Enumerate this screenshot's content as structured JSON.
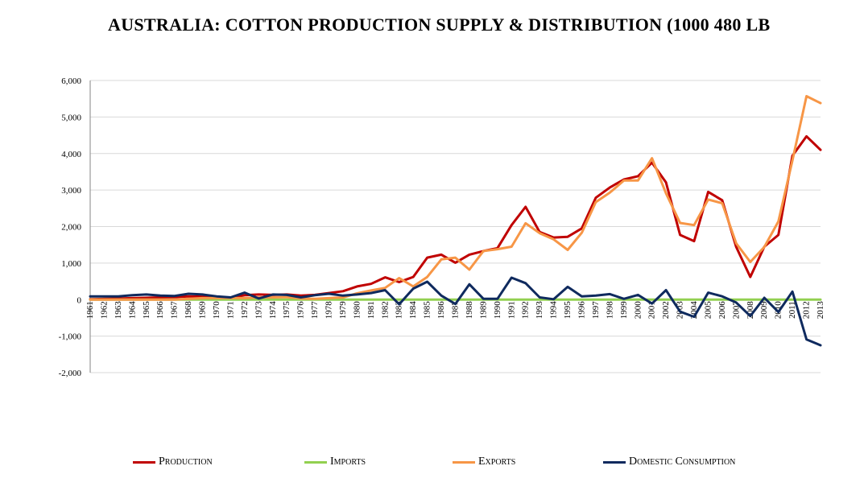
{
  "chart_data": {
    "type": "line",
    "title": "AUSTRALIA:  COTTON PRODUCTION SUPPLY & DISTRIBUTION  (1000 480 LB",
    "xlabel": "",
    "ylabel": "",
    "ylim": [
      -2000,
      6000
    ],
    "yticks": [
      -2000,
      -1000,
      0,
      1000,
      2000,
      3000,
      4000,
      5000,
      6000
    ],
    "ytick_labels": [
      "-2,000",
      "-1,000",
      "0",
      "1,000",
      "2,000",
      "3,000",
      "4,000",
      "5,000",
      "6,000"
    ],
    "grid": true,
    "legend_position": "bottom",
    "x": [
      "1961",
      "1962",
      "1963",
      "1964",
      "1965",
      "1966",
      "1967",
      "1968",
      "1969",
      "1970",
      "1971",
      "1972",
      "1973",
      "1974",
      "1975",
      "1976",
      "1977",
      "1978",
      "1979",
      "1980",
      "1981",
      "1982",
      "1983",
      "1984",
      "1985",
      "1986",
      "1987",
      "1988",
      "1989",
      "1990",
      "1991",
      "1992",
      "1993",
      "1994",
      "1995",
      "1996",
      "1997",
      "1998",
      "1999",
      "2000",
      "2001",
      "2002",
      "2003",
      "2004",
      "2005",
      "2006",
      "2007",
      "2008",
      "2009",
      "2010",
      "2011",
      "2012",
      "2013"
    ],
    "series": [
      {
        "name": "Production",
        "color": "#c00000",
        "values": [
          10,
          20,
          30,
          40,
          50,
          60,
          70,
          90,
          80,
          60,
          50,
          120,
          140,
          130,
          140,
          110,
          130,
          180,
          230,
          360,
          430,
          610,
          480,
          620,
          1150,
          1230,
          1010,
          1230,
          1330,
          1410,
          2040,
          2540,
          1850,
          1700,
          1720,
          1950,
          2790,
          3070,
          3290,
          3380,
          3750,
          3210,
          1770,
          1600,
          2950,
          2720,
          1440,
          620,
          1450,
          1770,
          3940,
          4470,
          4100
        ]
      },
      {
        "name": "Imports",
        "color": "#92d050",
        "values": [
          0,
          0,
          0,
          0,
          0,
          0,
          0,
          0,
          0,
          0,
          0,
          0,
          0,
          0,
          0,
          0,
          0,
          0,
          0,
          0,
          0,
          0,
          0,
          0,
          0,
          0,
          0,
          0,
          0,
          0,
          0,
          0,
          0,
          0,
          0,
          0,
          0,
          0,
          0,
          0,
          0,
          0,
          0,
          0,
          0,
          0,
          0,
          0,
          0,
          0,
          0,
          0,
          0
        ]
      },
      {
        "name": "Exports",
        "color": "#f79646",
        "values": [
          0,
          0,
          0,
          0,
          0,
          0,
          0,
          20,
          40,
          40,
          40,
          40,
          60,
          60,
          70,
          30,
          20,
          40,
          60,
          170,
          250,
          320,
          590,
          360,
          620,
          1100,
          1150,
          820,
          1330,
          1380,
          1450,
          2090,
          1820,
          1650,
          1360,
          1830,
          2670,
          2930,
          3260,
          3260,
          3870,
          2910,
          2100,
          2040,
          2740,
          2640,
          1540,
          1030,
          1440,
          2140,
          3810,
          5570,
          5380
        ]
      },
      {
        "name": "Domestic Consumption",
        "color": "#0f2a5e",
        "values": [
          90,
          90,
          90,
          120,
          140,
          110,
          100,
          160,
          140,
          90,
          60,
          190,
          30,
          140,
          130,
          60,
          120,
          160,
          110,
          140,
          180,
          260,
          -130,
          300,
          490,
          110,
          -120,
          420,
          20,
          20,
          600,
          450,
          60,
          10,
          350,
          90,
          110,
          150,
          20,
          130,
          -110,
          260,
          -330,
          -470,
          190,
          90,
          -80,
          -450,
          50,
          -340,
          220,
          -1090,
          -1250
        ]
      }
    ]
  }
}
